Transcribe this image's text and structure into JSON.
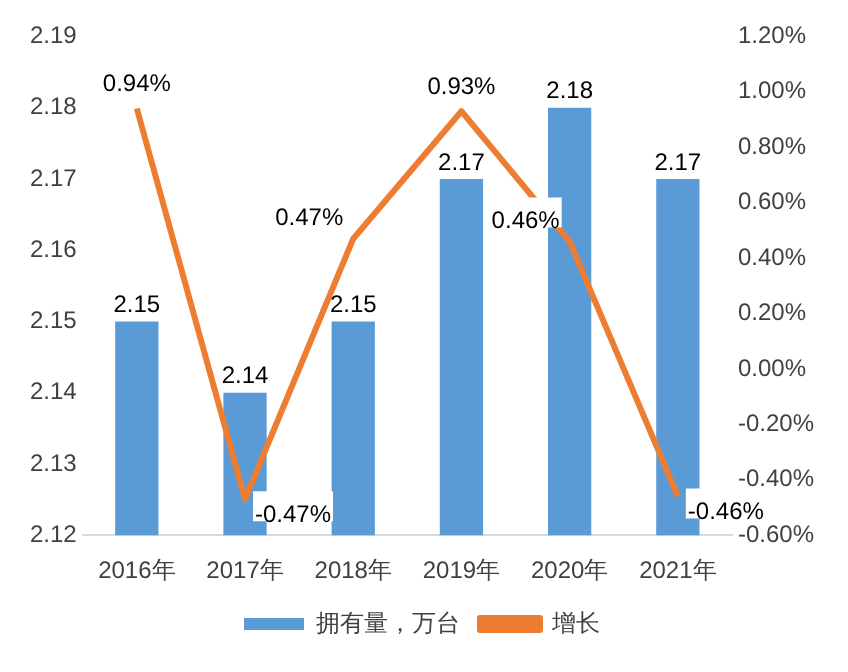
{
  "chart_data": {
    "type": "bar",
    "categories": [
      "2016年",
      "2017年",
      "2018年",
      "2019年",
      "2020年",
      "2021年"
    ],
    "series": [
      {
        "name": "拥有量，万台",
        "color": "#5b9bd5",
        "values": [
          2.15,
          2.14,
          2.15,
          2.17,
          2.18,
          2.17
        ],
        "value_labels": [
          "2.15",
          "2.14",
          "2.15",
          "2.17",
          "2.18",
          "2.17"
        ]
      },
      {
        "name": "增长",
        "type": "line",
        "axis": "y2",
        "color": "#ed7d31",
        "values": [
          0.94,
          -0.47,
          0.47,
          0.93,
          0.46,
          -0.46
        ],
        "value_labels": [
          "0.94%",
          "-0.47%",
          "0.47%",
          "0.93%",
          "0.46%",
          "-0.46%"
        ]
      }
    ],
    "ylim": [
      2.12,
      2.19
    ],
    "yticks": [
      2.12,
      2.13,
      2.14,
      2.15,
      2.16,
      2.17,
      2.18,
      2.19
    ],
    "y2lim": [
      -0.6,
      1.2
    ],
    "y2ticks": [
      {
        "value": -0.6,
        "label": "-0.60%"
      },
      {
        "value": -0.4,
        "label": "-0.40%"
      },
      {
        "value": -0.2,
        "label": "-0.20%"
      },
      {
        "value": 0,
        "label": "0.00%"
      },
      {
        "value": 0.2,
        "label": "0.20%"
      },
      {
        "value": 0.4,
        "label": "0.40%"
      },
      {
        "value": 0.6,
        "label": "0.60%"
      },
      {
        "value": 0.8,
        "label": "0.80%"
      },
      {
        "value": 1.0,
        "label": "1.00%"
      },
      {
        "value": 1.2,
        "label": "1.20%"
      }
    ],
    "legend": "bottom",
    "marker": "none",
    "line_style": "solid"
  }
}
